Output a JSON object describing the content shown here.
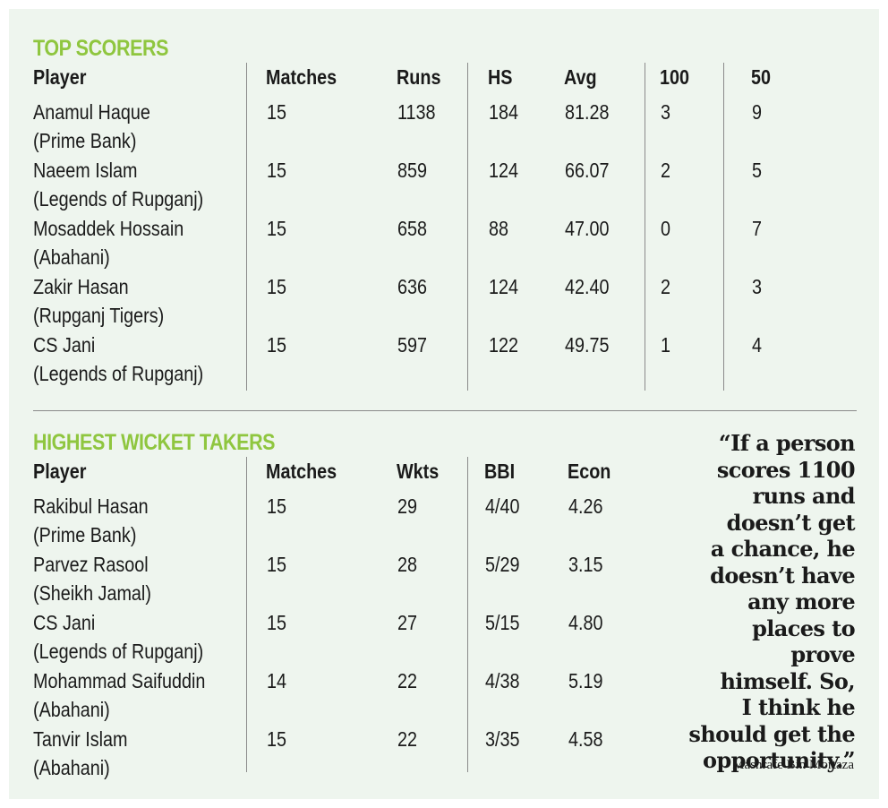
{
  "top_scorers": {
    "title": "TOP SCORERS",
    "columns": [
      "Player",
      "Matches",
      "Runs",
      "HS",
      "Avg",
      "100",
      "50"
    ],
    "rows": [
      {
        "name": "Anamul Haque",
        "team": "(Prime Bank)",
        "values": [
          "15",
          "1138",
          "184",
          "81.28",
          "3",
          "9"
        ]
      },
      {
        "name": "Naeem Islam",
        "team": "(Legends of Rupganj)",
        "values": [
          "15",
          "859",
          "124",
          "66.07",
          "2",
          "5"
        ]
      },
      {
        "name": "Mosaddek Hossain",
        "team": "(Abahani)",
        "values": [
          "15",
          "658",
          "88",
          "47.00",
          "0",
          "7"
        ]
      },
      {
        "name": "Zakir Hasan",
        "team": "(Rupganj Tigers)",
        "values": [
          "15",
          "636",
          "124",
          "42.40",
          "2",
          "3"
        ]
      },
      {
        "name": "CS Jani",
        "team": "(Legends of Rupganj)",
        "values": [
          "15",
          "597",
          "122",
          "49.75",
          "1",
          "4"
        ]
      }
    ]
  },
  "wicket_takers": {
    "title": "HIGHEST WICKET TAKERS",
    "columns": [
      "Player",
      "Matches",
      "Wkts",
      "BBI",
      "Econ"
    ],
    "rows": [
      {
        "name": "Rakibul Hasan",
        "team": "(Prime Bank)",
        "values": [
          "15",
          "29",
          "4/40",
          "4.26"
        ]
      },
      {
        "name": "Parvez Rasool",
        "team": "(Sheikh Jamal)",
        "values": [
          "15",
          "28",
          "5/29",
          "3.15"
        ]
      },
      {
        "name": "CS Jani",
        "team": "(Legends of Rupganj)",
        "values": [
          "15",
          "27",
          "5/15",
          "4.80"
        ]
      },
      {
        "name": "Mohammad Saifuddin",
        "team": "(Abahani)",
        "values": [
          "14",
          "22",
          "4/38",
          "5.19"
        ]
      },
      {
        "name": "Tanvir Islam",
        "team": "(Abahani)",
        "values": [
          "15",
          "22",
          "3/35",
          "4.58"
        ]
      }
    ]
  },
  "quote": {
    "lines": [
      "“If a person",
      "scores 1100",
      "runs and",
      "doesn’t get",
      "a chance, he",
      "doesn’t have",
      "any more",
      "places to prove",
      "himself. So,",
      "I think he",
      "should get the",
      "opportunity.”"
    ],
    "attribution": "Mashrafe Bin Mortaza"
  },
  "colors": {
    "accent": "#8fc63f",
    "panel_bg": "#eef5ee",
    "rule": "#8a8a8a"
  }
}
